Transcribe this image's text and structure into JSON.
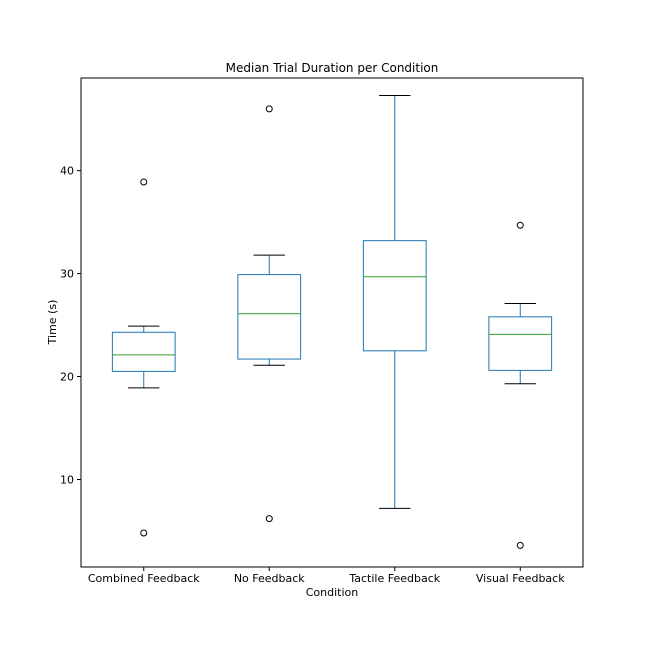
{
  "chart_data": {
    "type": "box",
    "title": "Median Trial Duration per Condition",
    "xlabel": "Condition",
    "ylabel": "Time (s)",
    "ylim": [
      1.5,
      49
    ],
    "yticks": [
      10,
      20,
      30,
      40
    ],
    "grid": false,
    "categories": [
      "Combined Feedback",
      "No Feedback",
      "Tactile Feedback",
      "Visual Feedback"
    ],
    "boxes": [
      {
        "whisker_low": 18.9,
        "q1": 20.5,
        "median": 22.1,
        "q3": 24.3,
        "whisker_high": 24.9,
        "fliers": [
          38.9,
          4.8
        ]
      },
      {
        "whisker_low": 21.1,
        "q1": 21.7,
        "median": 26.1,
        "q3": 29.9,
        "whisker_high": 31.8,
        "fliers": [
          46.0,
          6.2
        ]
      },
      {
        "whisker_low": 7.2,
        "q1": 22.5,
        "median": 29.7,
        "q3": 33.2,
        "whisker_high": 47.3,
        "fliers": []
      },
      {
        "whisker_low": 19.3,
        "q1": 20.6,
        "median": 24.1,
        "q3": 25.8,
        "whisker_high": 27.1,
        "fliers": [
          34.7,
          3.6
        ]
      }
    ],
    "colors": {
      "box": "#1f77b4",
      "median": "#2ca02c",
      "whisker_cap": "#000000",
      "flier": "#000000"
    }
  }
}
